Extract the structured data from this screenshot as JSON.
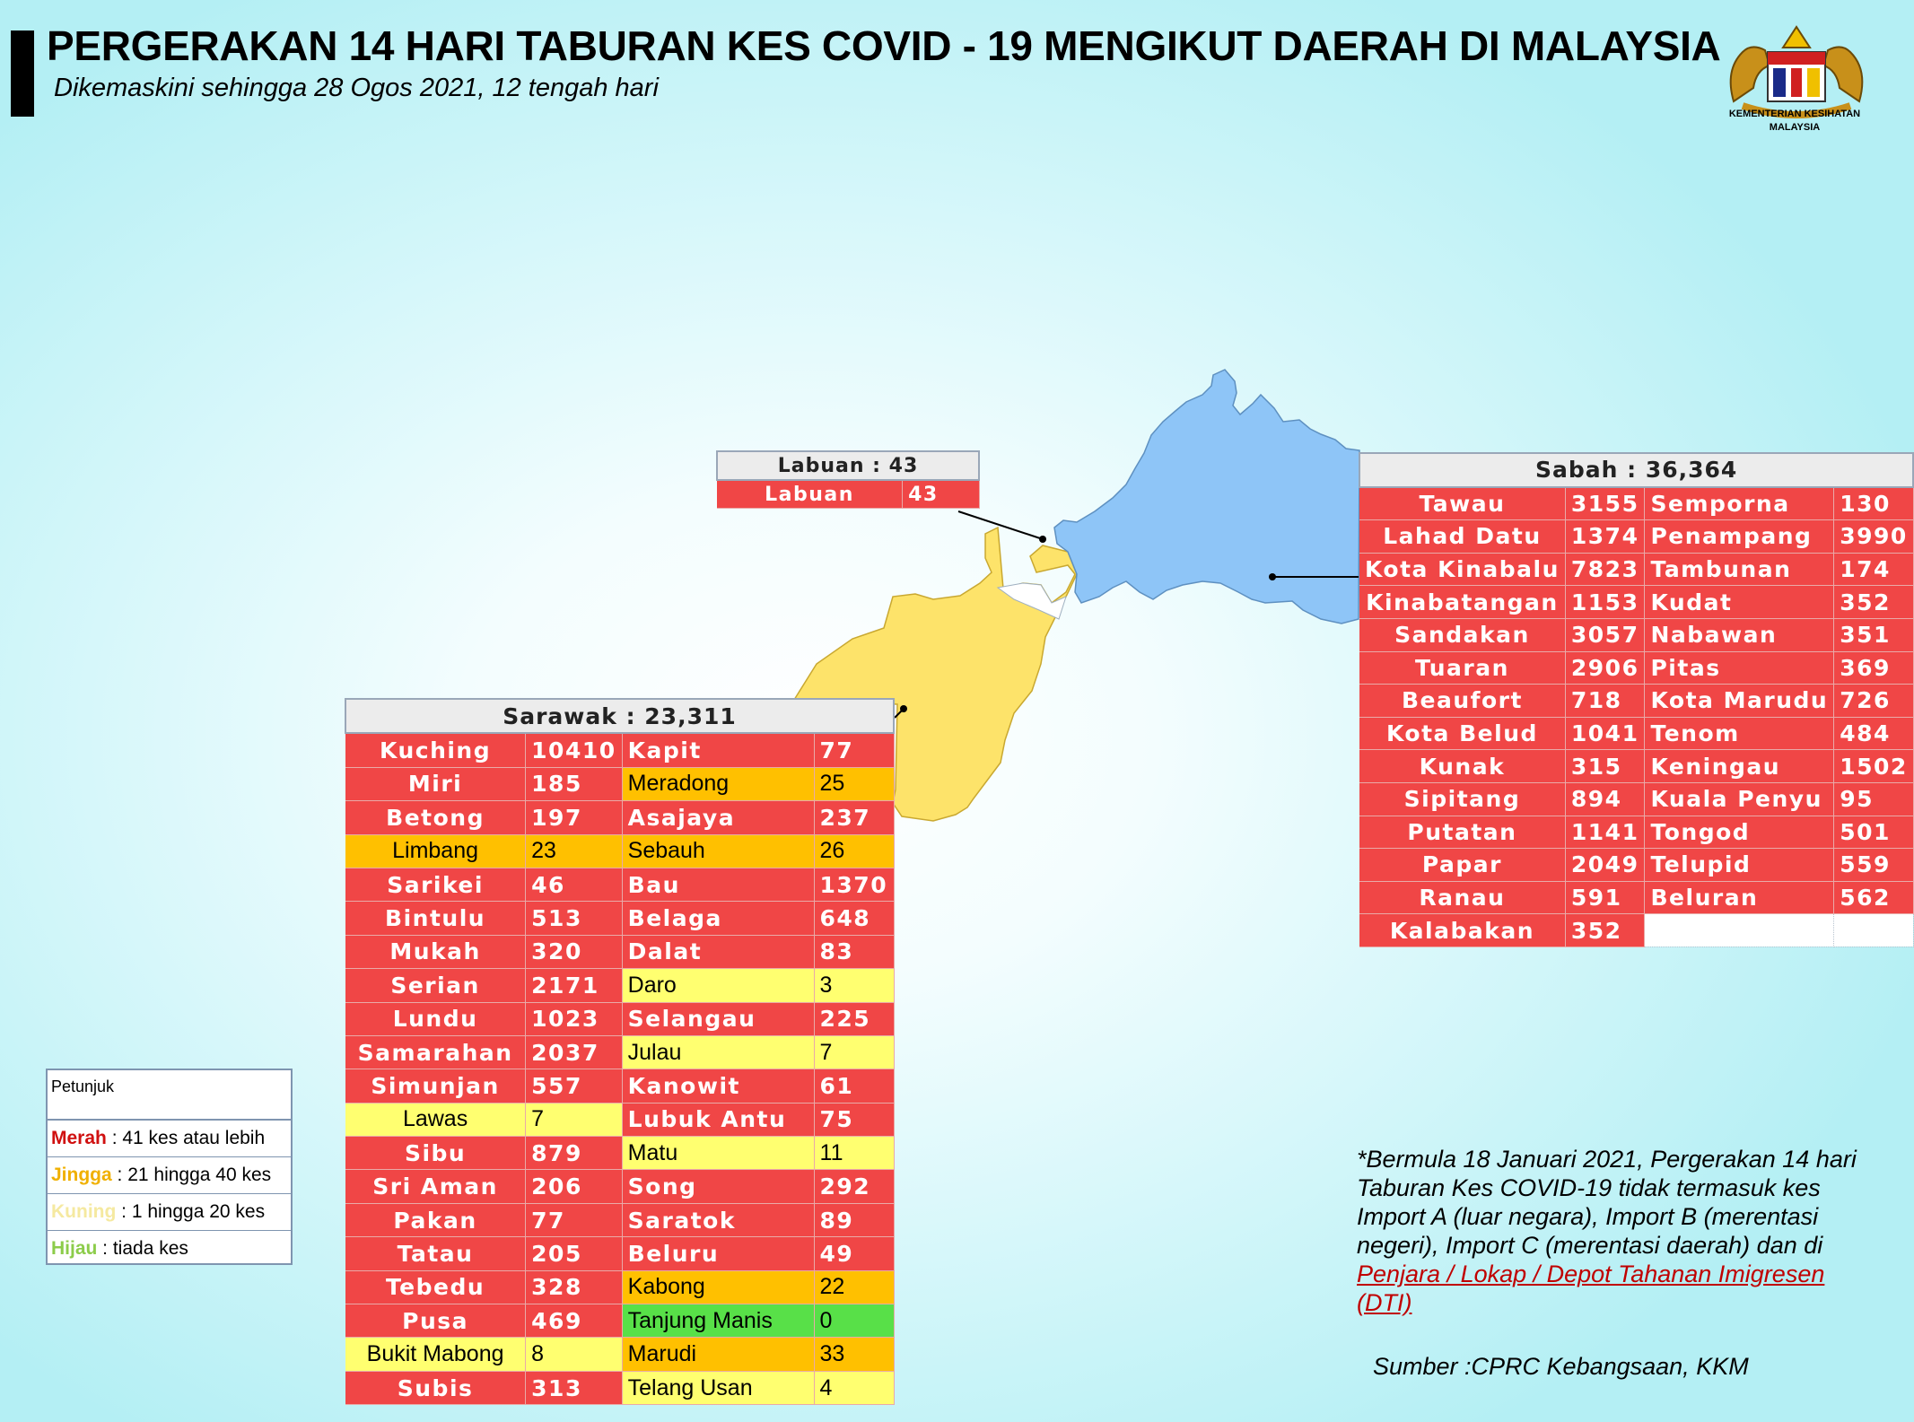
{
  "header": {
    "title": "PERGERAKAN 14 HARI TABURAN KES COVID - 19 MENGIKUT DAERAH DI MALAYSIA",
    "subtitle": "Dikemaskini sehingga 28 Ogos 2021, 12 tengah hari",
    "logo_text_1": "KEMENTERIAN KESIHATAN",
    "logo_text_2": "MALAYSIA"
  },
  "colors": {
    "merah": "#f04646",
    "jingga": "#ffc000",
    "kuning": "#ffff70",
    "hijau": "#58e048",
    "sabah_map": "#8ec5f7",
    "sarawak_map": "#fde36a"
  },
  "labuan": {
    "title": "Labuan : 43",
    "rows": [
      {
        "name": "Labuan",
        "value": "43",
        "level": "r"
      }
    ]
  },
  "sabah": {
    "title": "Sabah : 36,364",
    "rows": [
      [
        {
          "name": "Tawau",
          "value": "3155",
          "level": "r"
        },
        {
          "name": "Semporna",
          "value": "130",
          "level": "r"
        }
      ],
      [
        {
          "name": "Lahad Datu",
          "value": "1374",
          "level": "r"
        },
        {
          "name": "Penampang",
          "value": "3990",
          "level": "r"
        }
      ],
      [
        {
          "name": "Kota Kinabalu",
          "value": "7823",
          "level": "r"
        },
        {
          "name": "Tambunan",
          "value": "174",
          "level": "r"
        }
      ],
      [
        {
          "name": "Kinabatangan",
          "value": "1153",
          "level": "r"
        },
        {
          "name": "Kudat",
          "value": "352",
          "level": "r"
        }
      ],
      [
        {
          "name": "Sandakan",
          "value": "3057",
          "level": "r"
        },
        {
          "name": "Nabawan",
          "value": "351",
          "level": "r"
        }
      ],
      [
        {
          "name": "Tuaran",
          "value": "2906",
          "level": "r"
        },
        {
          "name": "Pitas",
          "value": "369",
          "level": "r"
        }
      ],
      [
        {
          "name": "Beaufort",
          "value": "718",
          "level": "r"
        },
        {
          "name": "Kota Marudu",
          "value": "726",
          "level": "r"
        }
      ],
      [
        {
          "name": "Kota Belud",
          "value": "1041",
          "level": "r"
        },
        {
          "name": "Tenom",
          "value": "484",
          "level": "r"
        }
      ],
      [
        {
          "name": "Kunak",
          "value": "315",
          "level": "r"
        },
        {
          "name": "Keningau",
          "value": "1502",
          "level": "r"
        }
      ],
      [
        {
          "name": "Sipitang",
          "value": "894",
          "level": "r"
        },
        {
          "name": "Kuala Penyu",
          "value": "95",
          "level": "r"
        }
      ],
      [
        {
          "name": "Putatan",
          "value": "1141",
          "level": "r"
        },
        {
          "name": "Tongod",
          "value": "501",
          "level": "r"
        }
      ],
      [
        {
          "name": "Papar",
          "value": "2049",
          "level": "r"
        },
        {
          "name": "Telupid",
          "value": "559",
          "level": "r"
        }
      ],
      [
        {
          "name": "Ranau",
          "value": "591",
          "level": "r"
        },
        {
          "name": "Beluran",
          "value": "562",
          "level": "r"
        }
      ],
      [
        {
          "name": "Kalabakan",
          "value": "352",
          "level": "r"
        },
        {
          "name": "",
          "value": "",
          "level": "e"
        }
      ]
    ]
  },
  "sarawak": {
    "title": "Sarawak : 23,311",
    "rows": [
      [
        {
          "name": "Kuching",
          "value": "10410",
          "level": "r"
        },
        {
          "name": "Kapit",
          "value": "77",
          "level": "r"
        }
      ],
      [
        {
          "name": "Miri",
          "value": "185",
          "level": "r"
        },
        {
          "name": "Meradong",
          "value": "25",
          "level": "o"
        }
      ],
      [
        {
          "name": "Betong",
          "value": "197",
          "level": "r"
        },
        {
          "name": "Asajaya",
          "value": "237",
          "level": "r"
        }
      ],
      [
        {
          "name": "Limbang",
          "value": "23",
          "level": "o"
        },
        {
          "name": "Sebauh",
          "value": "26",
          "level": "o"
        }
      ],
      [
        {
          "name": "Sarikei",
          "value": "46",
          "level": "r"
        },
        {
          "name": "Bau",
          "value": "1370",
          "level": "r"
        }
      ],
      [
        {
          "name": "Bintulu",
          "value": "513",
          "level": "r"
        },
        {
          "name": "Belaga",
          "value": "648",
          "level": "r"
        }
      ],
      [
        {
          "name": "Mukah",
          "value": "320",
          "level": "r"
        },
        {
          "name": "Dalat",
          "value": "83",
          "level": "r"
        }
      ],
      [
        {
          "name": "Serian",
          "value": "2171",
          "level": "r"
        },
        {
          "name": "Daro",
          "value": "3",
          "level": "y"
        }
      ],
      [
        {
          "name": "Lundu",
          "value": "1023",
          "level": "r"
        },
        {
          "name": "Selangau",
          "value": "225",
          "level": "r"
        }
      ],
      [
        {
          "name": "Samarahan",
          "value": "2037",
          "level": "r"
        },
        {
          "name": "Julau",
          "value": "7",
          "level": "y"
        }
      ],
      [
        {
          "name": "Simunjan",
          "value": "557",
          "level": "r"
        },
        {
          "name": "Kanowit",
          "value": "61",
          "level": "r"
        }
      ],
      [
        {
          "name": "Lawas",
          "value": "7",
          "level": "y"
        },
        {
          "name": "Lubuk Antu",
          "value": "75",
          "level": "r"
        }
      ],
      [
        {
          "name": "Sibu",
          "value": "879",
          "level": "r"
        },
        {
          "name": "Matu",
          "value": "11",
          "level": "y"
        }
      ],
      [
        {
          "name": "Sri Aman",
          "value": "206",
          "level": "r"
        },
        {
          "name": "Song",
          "value": "292",
          "level": "r"
        }
      ],
      [
        {
          "name": "Pakan",
          "value": "77",
          "level": "r"
        },
        {
          "name": "Saratok",
          "value": "89",
          "level": "r"
        }
      ],
      [
        {
          "name": "Tatau",
          "value": "205",
          "level": "r"
        },
        {
          "name": "Beluru",
          "value": "49",
          "level": "r"
        }
      ],
      [
        {
          "name": "Tebedu",
          "value": "328",
          "level": "r"
        },
        {
          "name": "Kabong",
          "value": "22",
          "level": "o"
        }
      ],
      [
        {
          "name": "Pusa",
          "value": "469",
          "level": "r"
        },
        {
          "name": "Tanjung Manis",
          "value": "0",
          "level": "g"
        }
      ],
      [
        {
          "name": "Bukit Mabong",
          "value": "8",
          "level": "y"
        },
        {
          "name": "Marudi",
          "value": "33",
          "level": "o"
        }
      ],
      [
        {
          "name": "Subis",
          "value": "313",
          "level": "r"
        },
        {
          "name": "Telang Usan",
          "value": "4",
          "level": "y"
        }
      ]
    ]
  },
  "legend": {
    "title": "Petunjuk",
    "items": [
      {
        "key": "Merah",
        "desc": " : 41 kes atau lebih",
        "color": "#d01010"
      },
      {
        "key": "Jingga",
        "desc": " : 21 hingga 40 kes",
        "color": "#f0b000"
      },
      {
        "key": "Kuning",
        "desc": " : 1 hingga 20 kes",
        "color": "#f5e9a0"
      },
      {
        "key": "Hijau",
        "desc": " : tiada kes",
        "color": "#8ccc4a"
      }
    ]
  },
  "note": {
    "text": "*Bermula 18 Januari 2021, Pergerakan 14 hari Taburan Kes COVID-19 tidak termasuk kes Import A (luar negara), Import B (merentasi negeri), Import C (merentasi daerah) dan di",
    "link": "Penjara / Lokap / Depot Tahanan Imigresen (DTI)"
  },
  "source": "Sumber :CPRC Kebangsaan,  KKM"
}
